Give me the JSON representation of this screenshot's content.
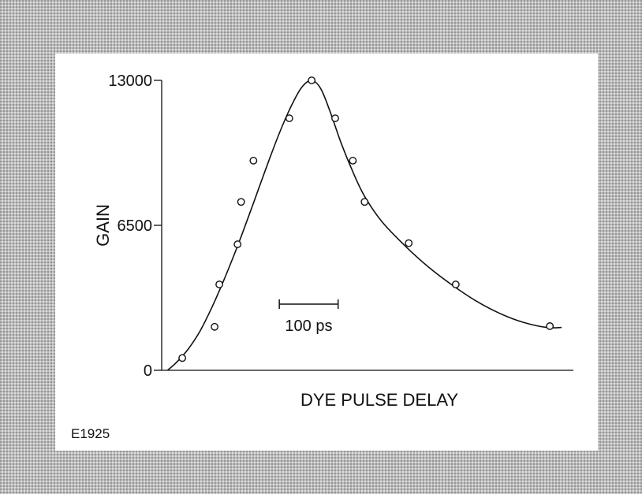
{
  "figure_id": "E1925",
  "chart_data": {
    "type": "scatter",
    "xlabel": "DYE PULSE DELAY",
    "ylabel": "GAIN",
    "ylim": [
      0,
      13000
    ],
    "yticks": [
      0,
      6500,
      13000
    ],
    "ytick_labels": [
      "0",
      "6500",
      "13000"
    ],
    "x_unit": "ps",
    "xlim": [
      -255,
      445
    ],
    "grid": false,
    "scale_bar": {
      "label": "100 ps",
      "length_ps": 100,
      "start_ps": -55
    },
    "points": [
      {
        "x": -220,
        "y": 550
      },
      {
        "x": -165,
        "y": 1950
      },
      {
        "x": -157,
        "y": 3850
      },
      {
        "x": -126,
        "y": 5650
      },
      {
        "x": -120,
        "y": 7550
      },
      {
        "x": -99,
        "y": 9400
      },
      {
        "x": -38,
        "y": 11300
      },
      {
        "x": 0,
        "y": 13000
      },
      {
        "x": 40,
        "y": 11300
      },
      {
        "x": 70,
        "y": 9400
      },
      {
        "x": 90,
        "y": 7550
      },
      {
        "x": 165,
        "y": 5700
      },
      {
        "x": 245,
        "y": 3850
      },
      {
        "x": 405,
        "y": 1980
      }
    ],
    "fit_curve": [
      {
        "x": -245,
        "y": 0
      },
      {
        "x": -230,
        "y": 350
      },
      {
        "x": -210,
        "y": 950
      },
      {
        "x": -190,
        "y": 1750
      },
      {
        "x": -170,
        "y": 2800
      },
      {
        "x": -150,
        "y": 4000
      },
      {
        "x": -130,
        "y": 5300
      },
      {
        "x": -110,
        "y": 6700
      },
      {
        "x": -90,
        "y": 8150
      },
      {
        "x": -70,
        "y": 9600
      },
      {
        "x": -50,
        "y": 10950
      },
      {
        "x": -30,
        "y": 12100
      },
      {
        "x": -15,
        "y": 12750
      },
      {
        "x": 0,
        "y": 13000
      },
      {
        "x": 15,
        "y": 12650
      },
      {
        "x": 30,
        "y": 11700
      },
      {
        "x": 50,
        "y": 10200
      },
      {
        "x": 70,
        "y": 8900
      },
      {
        "x": 90,
        "y": 7800
      },
      {
        "x": 120,
        "y": 6650
      },
      {
        "x": 160,
        "y": 5550
      },
      {
        "x": 200,
        "y": 4600
      },
      {
        "x": 240,
        "y": 3800
      },
      {
        "x": 280,
        "y": 3100
      },
      {
        "x": 320,
        "y": 2550
      },
      {
        "x": 360,
        "y": 2150
      },
      {
        "x": 400,
        "y": 1920
      },
      {
        "x": 425,
        "y": 1920
      }
    ]
  }
}
